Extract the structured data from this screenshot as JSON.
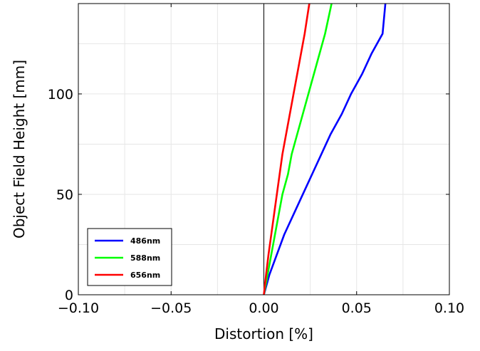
{
  "chart_data": {
    "type": "line",
    "xlabel": "Distortion [%]",
    "ylabel": "Object Field Height [mm]",
    "xlim": [
      -0.1,
      0.1
    ],
    "ylim": [
      0,
      145
    ],
    "x_ticks": [
      -0.1,
      -0.05,
      0.0,
      0.05,
      0.1
    ],
    "x_tick_labels": [
      "−0.10",
      "−0.05",
      "0.00",
      "0.05",
      "0.10"
    ],
    "y_ticks": [
      0,
      50,
      100
    ],
    "y_tick_labels": [
      "0",
      "50",
      "100"
    ],
    "grid": true,
    "legend_position": "bottom-left",
    "series": [
      {
        "name": "486nm",
        "color": "#0000ff",
        "points": [
          [
            0,
            0
          ],
          [
            0.003,
            10
          ],
          [
            0.007,
            20
          ],
          [
            0.011,
            30
          ],
          [
            0.016,
            40
          ],
          [
            0.021,
            50
          ],
          [
            0.026,
            60
          ],
          [
            0.031,
            70
          ],
          [
            0.036,
            80
          ],
          [
            0.042,
            90
          ],
          [
            0.047,
            100
          ],
          [
            0.053,
            110
          ],
          [
            0.058,
            120
          ],
          [
            0.064,
            130
          ],
          [
            0.0655,
            145
          ]
        ]
      },
      {
        "name": "588nm",
        "color": "#00ff00",
        "points": [
          [
            0,
            0
          ],
          [
            0.002,
            10
          ],
          [
            0.004,
            20
          ],
          [
            0.006,
            30
          ],
          [
            0.008,
            40
          ],
          [
            0.01,
            50
          ],
          [
            0.013,
            60
          ],
          [
            0.015,
            70
          ],
          [
            0.018,
            80
          ],
          [
            0.021,
            90
          ],
          [
            0.024,
            100
          ],
          [
            0.027,
            110
          ],
          [
            0.03,
            120
          ],
          [
            0.033,
            130
          ],
          [
            0.0365,
            145
          ]
        ]
      },
      {
        "name": "656nm",
        "color": "#ff0000",
        "points": [
          [
            0,
            0
          ],
          [
            0.0012,
            10
          ],
          [
            0.0025,
            20
          ],
          [
            0.004,
            30
          ],
          [
            0.0055,
            40
          ],
          [
            0.007,
            50
          ],
          [
            0.0085,
            60
          ],
          [
            0.01,
            70
          ],
          [
            0.012,
            80
          ],
          [
            0.014,
            90
          ],
          [
            0.016,
            100
          ],
          [
            0.018,
            110
          ],
          [
            0.02,
            120
          ],
          [
            0.022,
            130
          ],
          [
            0.0245,
            145
          ]
        ]
      }
    ]
  }
}
